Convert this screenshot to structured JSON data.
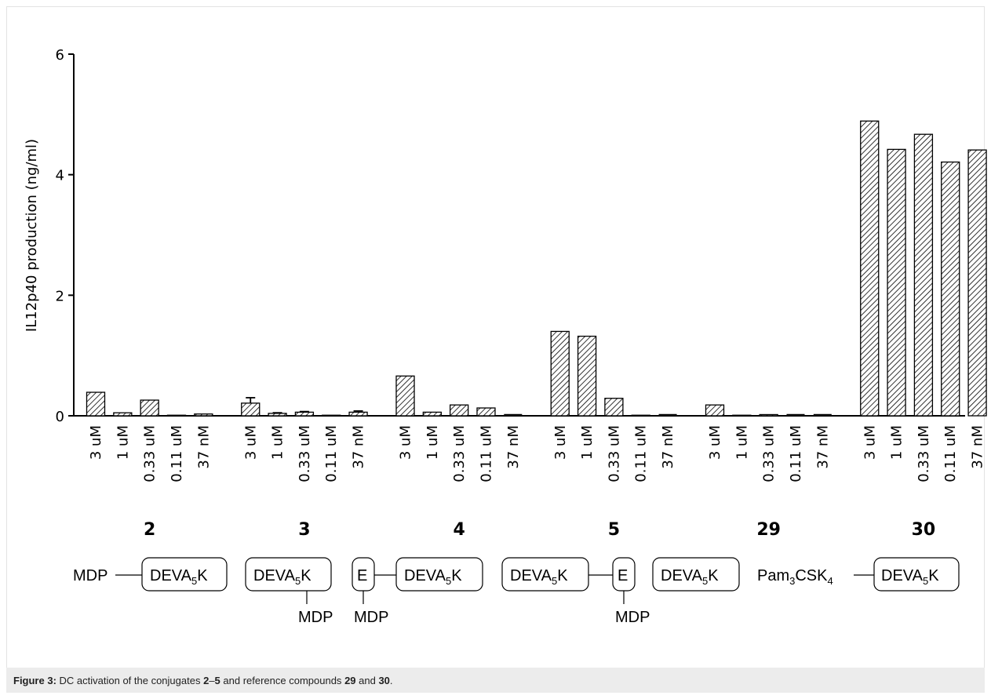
{
  "chart_data": {
    "type": "bar",
    "ylabel": "IL12p40 production (ng/ml)",
    "ylim": [
      0,
      6
    ],
    "yticks": [
      0,
      2,
      4,
      6
    ],
    "grid": false,
    "bar_pattern": "diagonal-hatch",
    "bar_color": "#000000",
    "groups": [
      {
        "label": "2",
        "categories": [
          "3 uM",
          "1 uM",
          "0.33 uM",
          "0.11 uM",
          "37 nM"
        ],
        "values": [
          0.39,
          0.05,
          0.26,
          0.01,
          0.03
        ],
        "errors": [
          0,
          0,
          0,
          0,
          0
        ]
      },
      {
        "label": "3",
        "categories": [
          "3 uM",
          "1 uM",
          "0.33 uM",
          "0.11 uM",
          "37 nM"
        ],
        "values": [
          0.21,
          0.04,
          0.06,
          0.01,
          0.06
        ],
        "errors": [
          0.09,
          0.01,
          0.01,
          0,
          0.02
        ]
      },
      {
        "label": "4",
        "categories": [
          "3 uM",
          "1 uM",
          "0.33 uM",
          "0.11 uM",
          "37 nM"
        ],
        "values": [
          0.66,
          0.06,
          0.18,
          0.13,
          0
        ],
        "errors": [
          0,
          0,
          0,
          0,
          0
        ]
      },
      {
        "label": "5",
        "categories": [
          "3 uM",
          "1 uM",
          "0.33 uM",
          "0.11 uM",
          "37 nM"
        ],
        "values": [
          1.4,
          1.32,
          0.29,
          0.01,
          0
        ],
        "errors": [
          0,
          0,
          0,
          0,
          0
        ]
      },
      {
        "label": "29",
        "categories": [
          "3 uM",
          "1 uM",
          "0.33 uM",
          "0.11 uM",
          "37 nM"
        ],
        "values": [
          0.18,
          0.01,
          0.02,
          0,
          0
        ],
        "errors": [
          0,
          0,
          0,
          0,
          0
        ]
      },
      {
        "label": "30",
        "categories": [
          "3 uM",
          "1 uM",
          "0.33 uM",
          "0.11 uM",
          "37 nM"
        ],
        "values": [
          4.89,
          4.42,
          4.67,
          4.21,
          4.41
        ],
        "errors": [
          0,
          0,
          0,
          0,
          0
        ]
      }
    ]
  },
  "structures": {
    "g2": {
      "mdp": "MDP",
      "box": "DEVA",
      "sub": "5",
      "tail": "K"
    },
    "g3": {
      "box": "DEVA",
      "sub": "5",
      "tail": "K",
      "mdp": "MDP"
    },
    "g4": {
      "e": "E",
      "mdp": "MDP",
      "box": "DEVA",
      "sub": "5",
      "tail": "K"
    },
    "g5": {
      "box": "DEVA",
      "sub": "5",
      "tail": "K",
      "e": "E",
      "mdp": "MDP"
    },
    "g29": {
      "box": "DEVA",
      "sub": "5",
      "tail": "K"
    },
    "g30": {
      "pam": "Pam",
      "pam_sub1": "3",
      "pam_mid": "CSK",
      "pam_sub2": "4",
      "box": "DEVA",
      "sub": "5",
      "tail": "K"
    }
  },
  "caption": {
    "prefix": "Figure 3:",
    "t1": " DC activation of the conjugates ",
    "b1": "2",
    "t2": "–",
    "b2": "5",
    "t3": " and reference compounds ",
    "b3": "29",
    "t4": " and ",
    "b4": "30",
    "t5": "."
  }
}
